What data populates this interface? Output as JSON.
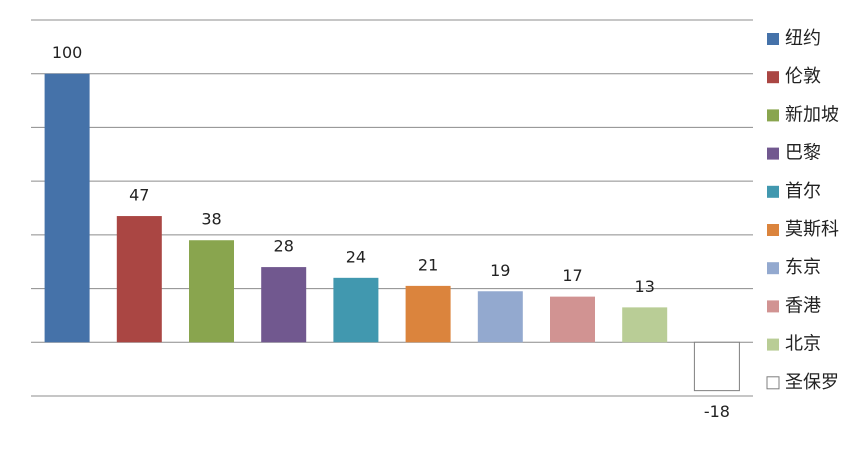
{
  "chart_data": {
    "type": "bar",
    "categories": [
      "纽约",
      "伦敦",
      "新加坡",
      "巴黎",
      "首尔",
      "莫斯科",
      "东京",
      "香港",
      "北京",
      "圣保罗"
    ],
    "values": [
      100,
      47,
      38,
      28,
      24,
      21,
      19,
      17,
      13,
      -18
    ],
    "colors": [
      "#4572a9",
      "#aa4643",
      "#89a54e",
      "#71588f",
      "#4198af",
      "#db843d",
      "#93a9cf",
      "#d19392",
      "#b9cd96",
      "#ffffff"
    ],
    "ylim": [
      -20,
      120
    ],
    "yticks": [
      -20,
      0,
      20,
      40,
      60,
      80,
      100,
      120
    ],
    "grid": true,
    "legend": "right"
  }
}
